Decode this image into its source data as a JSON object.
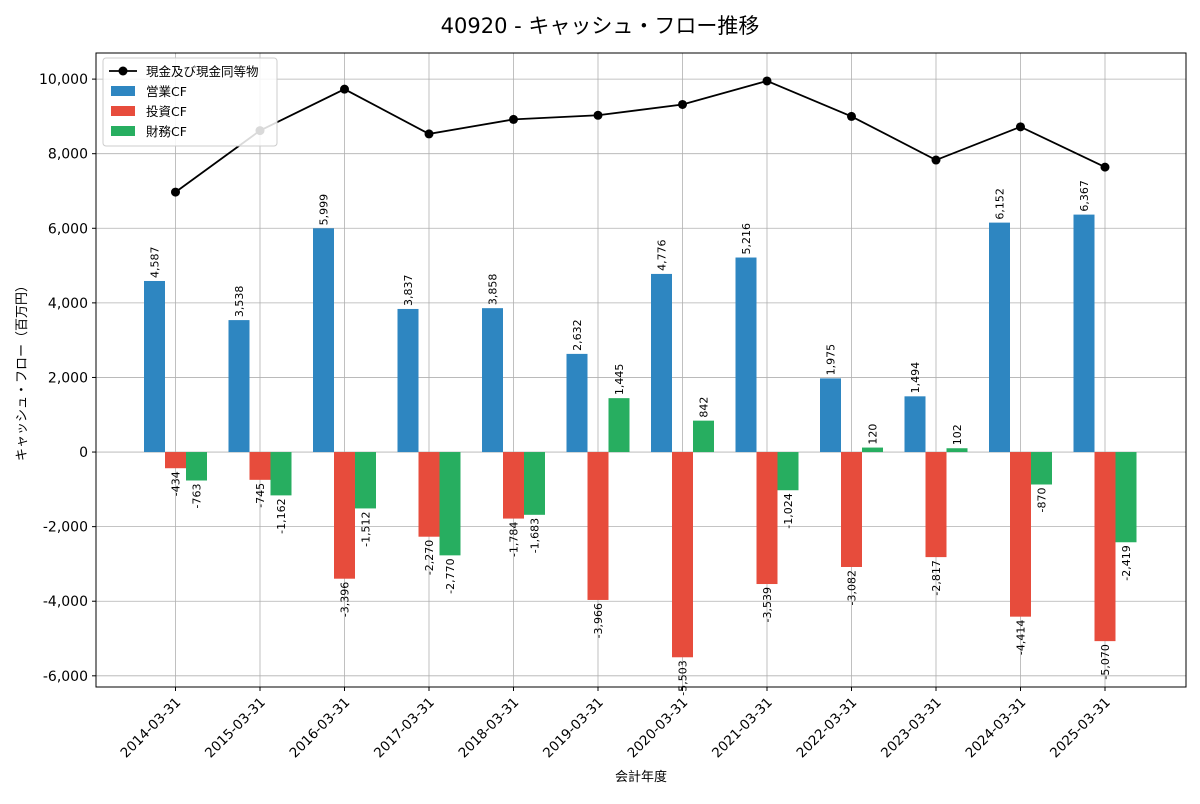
{
  "chart_data": {
    "type": "bar",
    "title": "40920 - キャッシュ・フロー推移",
    "xlabel": "会計年度",
    "ylabel": "キャッシュ・フロー（百万円）",
    "categories": [
      "2014-03-31",
      "2015-03-31",
      "2016-03-31",
      "2017-03-31",
      "2018-03-31",
      "2019-03-31",
      "2020-03-31",
      "2021-03-31",
      "2022-03-31",
      "2023-03-31",
      "2024-03-31",
      "2025-03-31"
    ],
    "ylim": [
      -6300,
      10700
    ],
    "yticks": [
      -6000,
      -4000,
      -2000,
      0,
      2000,
      4000,
      6000,
      8000,
      10000
    ],
    "ytick_labels": [
      "-6,000",
      "-4,000",
      "-2,000",
      "0",
      "2,000",
      "4,000",
      "6,000",
      "8,000",
      "10,000"
    ],
    "grid": true,
    "legend_position": "top-left",
    "series": [
      {
        "name": "営業CF",
        "kind": "bar",
        "color": "#2e86c1",
        "values": [
          4587,
          3538,
          5999,
          3837,
          3858,
          2632,
          4776,
          5216,
          1975,
          1494,
          6152,
          6367
        ],
        "labels": [
          "4,587",
          "3,538",
          "5,999",
          "3,837",
          "3,858",
          "2,632",
          "4,776",
          "5,216",
          "1,975",
          "1,494",
          "6,152",
          "6,367"
        ]
      },
      {
        "name": "投資CF",
        "kind": "bar",
        "color": "#e74c3c",
        "values": [
          -434,
          -745,
          -3396,
          -2270,
          -1784,
          -3966,
          -5503,
          -3539,
          -3082,
          -2817,
          -4414,
          -5070
        ],
        "labels": [
          "-434",
          "-745",
          "-3,396",
          "-2,270",
          "-1,784",
          "-3,966",
          "-5,503",
          "-3,539",
          "-3,082",
          "-2,817",
          "-4,414",
          "-5,070"
        ]
      },
      {
        "name": "財務CF",
        "kind": "bar",
        "color": "#27ae60",
        "values": [
          -763,
          -1162,
          -1512,
          -2770,
          -1683,
          1445,
          842,
          -1024,
          120,
          102,
          -870,
          -2419
        ],
        "labels": [
          "-763",
          "-1,162",
          "-1,512",
          "-2,770",
          "-1,683",
          "1,445",
          "842",
          "-1,024",
          "120",
          "102",
          "-870",
          "-2,419"
        ]
      },
      {
        "name": "現金及び現金同等物",
        "kind": "line",
        "color": "#000000",
        "values": [
          6970,
          8620,
          9730,
          8530,
          8920,
          9030,
          9320,
          9950,
          9000,
          7830,
          8720,
          7640
        ]
      }
    ]
  }
}
